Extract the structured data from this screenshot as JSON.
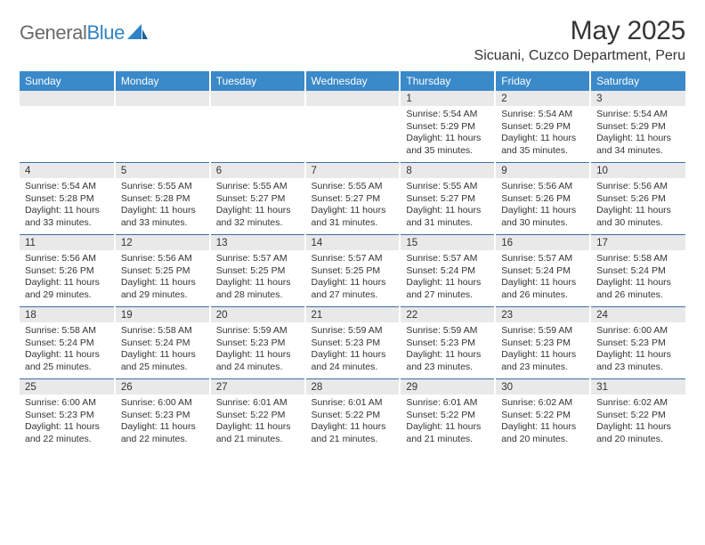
{
  "brand": {
    "name_a": "General",
    "name_b": "Blue"
  },
  "title": "May 2025",
  "location": "Sicuani, Cuzco Department, Peru",
  "colors": {
    "header_bg": "#3a89c9",
    "header_fg": "#ffffff",
    "daynum_bg": "#e9e9e9",
    "rule": "#3a6fa5",
    "logo_gray": "#6a6a6a",
    "logo_blue": "#2f83c5",
    "text": "#333333"
  },
  "day_headers": [
    "Sunday",
    "Monday",
    "Tuesday",
    "Wednesday",
    "Thursday",
    "Friday",
    "Saturday"
  ],
  "weeks": [
    [
      null,
      null,
      null,
      null,
      {
        "n": "1",
        "sr": "5:54 AM",
        "ss": "5:29 PM",
        "dl": "11 hours and 35 minutes."
      },
      {
        "n": "2",
        "sr": "5:54 AM",
        "ss": "5:29 PM",
        "dl": "11 hours and 35 minutes."
      },
      {
        "n": "3",
        "sr": "5:54 AM",
        "ss": "5:29 PM",
        "dl": "11 hours and 34 minutes."
      }
    ],
    [
      {
        "n": "4",
        "sr": "5:54 AM",
        "ss": "5:28 PM",
        "dl": "11 hours and 33 minutes."
      },
      {
        "n": "5",
        "sr": "5:55 AM",
        "ss": "5:28 PM",
        "dl": "11 hours and 33 minutes."
      },
      {
        "n": "6",
        "sr": "5:55 AM",
        "ss": "5:27 PM",
        "dl": "11 hours and 32 minutes."
      },
      {
        "n": "7",
        "sr": "5:55 AM",
        "ss": "5:27 PM",
        "dl": "11 hours and 31 minutes."
      },
      {
        "n": "8",
        "sr": "5:55 AM",
        "ss": "5:27 PM",
        "dl": "11 hours and 31 minutes."
      },
      {
        "n": "9",
        "sr": "5:56 AM",
        "ss": "5:26 PM",
        "dl": "11 hours and 30 minutes."
      },
      {
        "n": "10",
        "sr": "5:56 AM",
        "ss": "5:26 PM",
        "dl": "11 hours and 30 minutes."
      }
    ],
    [
      {
        "n": "11",
        "sr": "5:56 AM",
        "ss": "5:26 PM",
        "dl": "11 hours and 29 minutes."
      },
      {
        "n": "12",
        "sr": "5:56 AM",
        "ss": "5:25 PM",
        "dl": "11 hours and 29 minutes."
      },
      {
        "n": "13",
        "sr": "5:57 AM",
        "ss": "5:25 PM",
        "dl": "11 hours and 28 minutes."
      },
      {
        "n": "14",
        "sr": "5:57 AM",
        "ss": "5:25 PM",
        "dl": "11 hours and 27 minutes."
      },
      {
        "n": "15",
        "sr": "5:57 AM",
        "ss": "5:24 PM",
        "dl": "11 hours and 27 minutes."
      },
      {
        "n": "16",
        "sr": "5:57 AM",
        "ss": "5:24 PM",
        "dl": "11 hours and 26 minutes."
      },
      {
        "n": "17",
        "sr": "5:58 AM",
        "ss": "5:24 PM",
        "dl": "11 hours and 26 minutes."
      }
    ],
    [
      {
        "n": "18",
        "sr": "5:58 AM",
        "ss": "5:24 PM",
        "dl": "11 hours and 25 minutes."
      },
      {
        "n": "19",
        "sr": "5:58 AM",
        "ss": "5:24 PM",
        "dl": "11 hours and 25 minutes."
      },
      {
        "n": "20",
        "sr": "5:59 AM",
        "ss": "5:23 PM",
        "dl": "11 hours and 24 minutes."
      },
      {
        "n": "21",
        "sr": "5:59 AM",
        "ss": "5:23 PM",
        "dl": "11 hours and 24 minutes."
      },
      {
        "n": "22",
        "sr": "5:59 AM",
        "ss": "5:23 PM",
        "dl": "11 hours and 23 minutes."
      },
      {
        "n": "23",
        "sr": "5:59 AM",
        "ss": "5:23 PM",
        "dl": "11 hours and 23 minutes."
      },
      {
        "n": "24",
        "sr": "6:00 AM",
        "ss": "5:23 PM",
        "dl": "11 hours and 23 minutes."
      }
    ],
    [
      {
        "n": "25",
        "sr": "6:00 AM",
        "ss": "5:23 PM",
        "dl": "11 hours and 22 minutes."
      },
      {
        "n": "26",
        "sr": "6:00 AM",
        "ss": "5:23 PM",
        "dl": "11 hours and 22 minutes."
      },
      {
        "n": "27",
        "sr": "6:01 AM",
        "ss": "5:22 PM",
        "dl": "11 hours and 21 minutes."
      },
      {
        "n": "28",
        "sr": "6:01 AM",
        "ss": "5:22 PM",
        "dl": "11 hours and 21 minutes."
      },
      {
        "n": "29",
        "sr": "6:01 AM",
        "ss": "5:22 PM",
        "dl": "11 hours and 21 minutes."
      },
      {
        "n": "30",
        "sr": "6:02 AM",
        "ss": "5:22 PM",
        "dl": "11 hours and 20 minutes."
      },
      {
        "n": "31",
        "sr": "6:02 AM",
        "ss": "5:22 PM",
        "dl": "11 hours and 20 minutes."
      }
    ]
  ],
  "labels": {
    "sunrise_prefix": "Sunrise: ",
    "sunset_prefix": "Sunset: ",
    "daylight_prefix": "Daylight: "
  }
}
